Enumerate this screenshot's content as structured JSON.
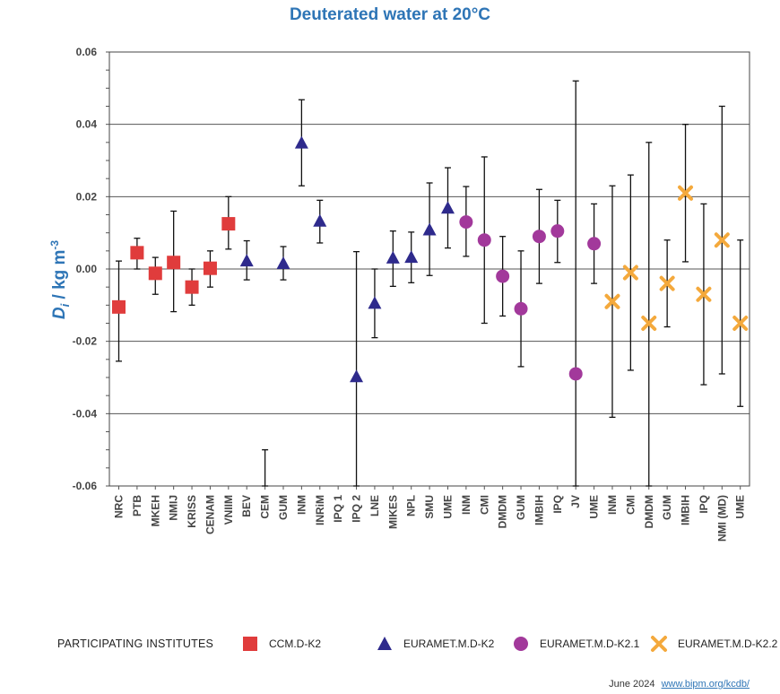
{
  "chart_data": {
    "type": "scatter",
    "title": "Deuterated water at 20°C",
    "ylabel_main": "D",
    "ylabel_sub": "i",
    "ylabel_rest": " / kg m",
    "ylabel_sup": "-3",
    "ylim": [
      -0.06,
      0.06
    ],
    "yticks": [
      "-0.06",
      "-0.04",
      "-0.02",
      "0.00",
      "0.02",
      "0.04",
      "0.06"
    ],
    "grid": true,
    "categories": [
      "NRC",
      "PTB",
      "MKEH",
      "NMIJ",
      "KRISS",
      "CENAM",
      "VNIIM",
      "BEV",
      "CEM",
      "GUM",
      "INM",
      "INRiM",
      "IPQ 1",
      "IPQ 2",
      "LNE",
      "MIKES",
      "NPL",
      "SMU",
      "UME",
      "INM",
      "CMI",
      "DMDM",
      "GUM",
      "IMBIH",
      "IPQ",
      "JV",
      "UME",
      "INM",
      "CMI",
      "DMDM",
      "GUM",
      "IMBIH",
      "IPQ",
      "NMI (MD)",
      "UME"
    ],
    "series": [
      {
        "name": "CCM.D-K2",
        "marker": "square",
        "color": "#e03c3c",
        "points": [
          {
            "category": 0,
            "value": -0.0105,
            "low": -0.0255,
            "high": 0.0022
          },
          {
            "category": 1,
            "value": 0.0045,
            "low": 0.0,
            "high": 0.0085
          },
          {
            "category": 2,
            "value": -0.0012,
            "low": -0.007,
            "high": 0.0032
          },
          {
            "category": 3,
            "value": 0.0018,
            "low": -0.0118,
            "high": 0.016
          },
          {
            "category": 4,
            "value": -0.005,
            "low": -0.01,
            "high": 0.0
          },
          {
            "category": 5,
            "value": 0.0002,
            "low": -0.005,
            "high": 0.005
          },
          {
            "category": 6,
            "value": 0.0125,
            "low": 0.0055,
            "high": 0.02
          }
        ]
      },
      {
        "name": "EURAMET.M.D-K2",
        "marker": "triangle",
        "color": "#2e2a8c",
        "points": [
          {
            "category": 7,
            "value": 0.0022,
            "low": -0.003,
            "high": 0.0078
          },
          {
            "category": 8,
            "value": null,
            "low": -0.06,
            "high": -0.05
          },
          {
            "category": 9,
            "value": 0.0015,
            "low": -0.003,
            "high": 0.0062
          },
          {
            "category": 10,
            "value": 0.0348,
            "low": 0.023,
            "high": 0.0468
          },
          {
            "category": 11,
            "value": 0.0132,
            "low": 0.0072,
            "high": 0.019
          },
          {
            "category": 13,
            "value": -0.0298,
            "low": -0.06,
            "high": 0.0048
          },
          {
            "category": 14,
            "value": -0.0095,
            "low": -0.019,
            "high": 0.0
          },
          {
            "category": 15,
            "value": 0.003,
            "low": -0.0048,
            "high": 0.0105
          },
          {
            "category": 16,
            "value": 0.0032,
            "low": -0.0038,
            "high": 0.0102
          },
          {
            "category": 17,
            "value": 0.0108,
            "low": -0.0018,
            "high": 0.0238
          },
          {
            "category": 18,
            "value": 0.0168,
            "low": 0.0058,
            "high": 0.028
          }
        ]
      },
      {
        "name": "EURAMET.M.D-K2.1",
        "marker": "circle",
        "color": "#a2399b",
        "points": [
          {
            "category": 19,
            "value": 0.013,
            "low": 0.0035,
            "high": 0.0228
          },
          {
            "category": 20,
            "value": 0.008,
            "low": -0.015,
            "high": 0.031
          },
          {
            "category": 21,
            "value": -0.002,
            "low": -0.013,
            "high": 0.009
          },
          {
            "category": 22,
            "value": -0.011,
            "low": -0.027,
            "high": 0.005
          },
          {
            "category": 23,
            "value": 0.009,
            "low": -0.004,
            "high": 0.022
          },
          {
            "category": 24,
            "value": 0.0105,
            "low": 0.0018,
            "high": 0.019
          },
          {
            "category": 25,
            "value": -0.029,
            "low": -0.06,
            "high": 0.052
          },
          {
            "category": 26,
            "value": 0.007,
            "low": -0.004,
            "high": 0.018
          }
        ]
      },
      {
        "name": "EURAMET.M.D-K2.2",
        "marker": "cross",
        "color": "#f4a93c",
        "points": [
          {
            "category": 27,
            "value": -0.009,
            "low": -0.041,
            "high": 0.023
          },
          {
            "category": 28,
            "value": -0.001,
            "low": -0.028,
            "high": 0.026
          },
          {
            "category": 29,
            "value": -0.015,
            "low": -0.06,
            "high": 0.035
          },
          {
            "category": 30,
            "value": -0.004,
            "low": -0.016,
            "high": 0.008
          },
          {
            "category": 31,
            "value": 0.021,
            "low": 0.002,
            "high": 0.04
          },
          {
            "category": 32,
            "value": -0.007,
            "low": -0.032,
            "high": 0.018
          },
          {
            "category": 33,
            "value": 0.008,
            "low": -0.029,
            "high": 0.045
          },
          {
            "category": 34,
            "value": -0.015,
            "low": -0.038,
            "high": 0.008
          }
        ]
      }
    ]
  },
  "legend": {
    "title": "PARTICIPATING INSTITUTES",
    "items": [
      {
        "label": "CCM.D-K2",
        "marker": "square",
        "color": "#e03c3c"
      },
      {
        "label": "EURAMET.M.D-K2",
        "marker": "triangle",
        "color": "#2e2a8c"
      },
      {
        "label": "EURAMET.M.D-K2.1",
        "marker": "circle",
        "color": "#a2399b"
      },
      {
        "label": "EURAMET.M.D-K2.2",
        "marker": "cross",
        "color": "#f4a93c"
      }
    ]
  },
  "footer": {
    "date": "June 2024",
    "link": "www.bipm.org/kcdb/"
  }
}
